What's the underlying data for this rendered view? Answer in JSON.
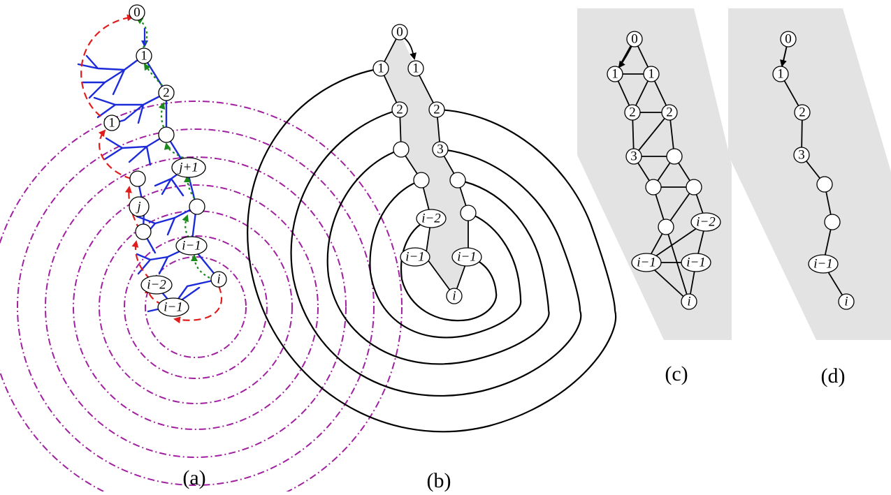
{
  "captions": {
    "a": "(a)",
    "b": "(b)",
    "c": "(c)",
    "d": "(d)"
  },
  "labels": {
    "zero": "0",
    "one": "1",
    "two": "2",
    "three": "3",
    "j": "j",
    "j1": "j+1",
    "i": "i",
    "im1": "i−1",
    "im2": "i−2"
  },
  "colors": {
    "tree_edges": "#1c2bd9",
    "red_arrows": "#e21b1b",
    "green_arrows": "#1a8a1a",
    "orbits": "#a020a0",
    "shading": "#e3e3e3"
  }
}
